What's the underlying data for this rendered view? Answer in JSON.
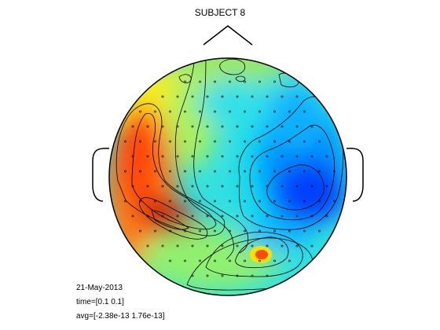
{
  "figure": {
    "title": "SUBJECT 8",
    "date": "21-May-2013",
    "time_label": "time=[0.1 0.1]",
    "avg_label": "avg=[-2.38e-13 1.76e-13]"
  },
  "colors": {
    "background": "#ffffff",
    "outline": "#000000",
    "colormap": "jet"
  }
}
